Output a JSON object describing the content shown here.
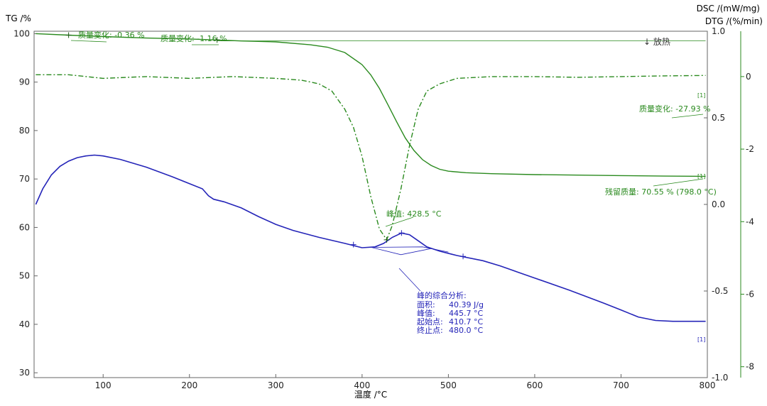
{
  "chart_data": {
    "type": "line",
    "colors": {
      "tg": "#2a8a1e",
      "dtg": "#2a8a1e",
      "dsc": "#2424b8",
      "axis_right_dtg": "#2a8a1e"
    },
    "axes": {
      "x": {
        "label": "温度 /°C",
        "range": [
          20,
          800
        ],
        "ticks": [
          "100",
          "200",
          "300",
          "400",
          "500",
          "600",
          "700",
          "800"
        ]
      },
      "tg": {
        "label": "TG /%",
        "range": [
          29,
          100.5
        ],
        "ticks": [
          "30",
          "40",
          "50",
          "60",
          "70",
          "80",
          "90",
          "100"
        ]
      },
      "dsc": {
        "label": "DSC /(mW/mg)",
        "range": [
          -1.0,
          1.0
        ],
        "ticks": [
          "1.0",
          "0.5",
          "0.0",
          "-0.5",
          "-1.0"
        ]
      },
      "dtg": {
        "label": "DTG /(%/min)",
        "range": [
          -8.3,
          1.25
        ],
        "ticks": [
          "0",
          "-2",
          "-4",
          "-6",
          "-8"
        ]
      }
    },
    "series": [
      {
        "axis": "tg",
        "x": [
          22,
          60,
          100,
          150,
          200,
          232,
          260,
          300,
          340,
          360,
          380,
          400,
          410,
          420,
          430,
          440,
          450,
          460,
          470,
          480,
          490,
          500,
          520,
          550,
          600,
          650,
          700,
          750,
          798
        ],
        "y": [
          100.0,
          99.7,
          99.4,
          99.1,
          98.9,
          98.7,
          98.5,
          98.3,
          97.7,
          97.2,
          96.1,
          93.6,
          91.5,
          88.7,
          85.3,
          81.8,
          78.5,
          75.9,
          74.0,
          72.8,
          72.0,
          71.6,
          71.3,
          71.1,
          70.9,
          70.8,
          70.7,
          70.6,
          70.55
        ]
      },
      {
        "axis": "dtg",
        "x": [
          22,
          60,
          100,
          150,
          200,
          250,
          300,
          330,
          350,
          365,
          380,
          390,
          400,
          410,
          420,
          428.5,
          435,
          445,
          455,
          465,
          475,
          490,
          510,
          550,
          600,
          650,
          700,
          750,
          798
        ],
        "y": [
          0.05,
          0.05,
          -0.05,
          0.0,
          -0.05,
          0.0,
          -0.05,
          -0.1,
          -0.2,
          -0.4,
          -0.9,
          -1.4,
          -2.2,
          -3.3,
          -4.2,
          -4.5,
          -4.1,
          -3.1,
          -1.9,
          -0.9,
          -0.4,
          -0.2,
          -0.05,
          0.0,
          0.0,
          -0.02,
          0.0,
          0.02,
          0.03
        ]
      },
      {
        "axis": "dsc",
        "x": [
          22,
          30,
          40,
          50,
          60,
          70,
          80,
          90,
          100,
          120,
          150,
          180,
          200,
          215,
          222,
          228,
          240,
          260,
          280,
          300,
          320,
          350,
          380,
          400,
          415,
          425,
          435,
          445.7,
          455,
          465,
          475,
          490,
          510,
          540,
          560,
          580,
          600,
          640,
          680,
          700,
          720,
          740,
          760,
          780,
          798
        ],
        "y": [
          0.0,
          0.09,
          0.17,
          0.22,
          0.25,
          0.27,
          0.28,
          0.285,
          0.28,
          0.26,
          0.215,
          0.16,
          0.12,
          0.09,
          0.05,
          0.03,
          0.015,
          -0.02,
          -0.07,
          -0.115,
          -0.15,
          -0.19,
          -0.225,
          -0.25,
          -0.245,
          -0.225,
          -0.19,
          -0.165,
          -0.175,
          -0.21,
          -0.245,
          -0.27,
          -0.295,
          -0.325,
          -0.355,
          -0.39,
          -0.425,
          -0.495,
          -0.57,
          -0.61,
          -0.65,
          -0.67,
          -0.675,
          -0.675,
          -0.675
        ]
      }
    ],
    "annotations": {
      "mass_change_1": "质量变化: -0.36 %",
      "mass_change_2": "质量变化: -1.16 %",
      "mass_change_3": "质量变化: -27.93 %",
      "residual": "残留质量: 70.55 % (798.0 °C)",
      "dtg_peak": "峰值: 428.5 °C",
      "exo": "↓ 放热",
      "marker": "[1]",
      "integration": {
        "title": "峰的综合分析:",
        "rows": [
          {
            "key": "面积:",
            "value": "40.39 J/g"
          },
          {
            "key": "峰值:",
            "value": "445.7 °C"
          },
          {
            "key": "起始点:",
            "value": "410.7 °C"
          },
          {
            "key": "终止点:",
            "value": "480.0 °C"
          }
        ]
      }
    }
  }
}
